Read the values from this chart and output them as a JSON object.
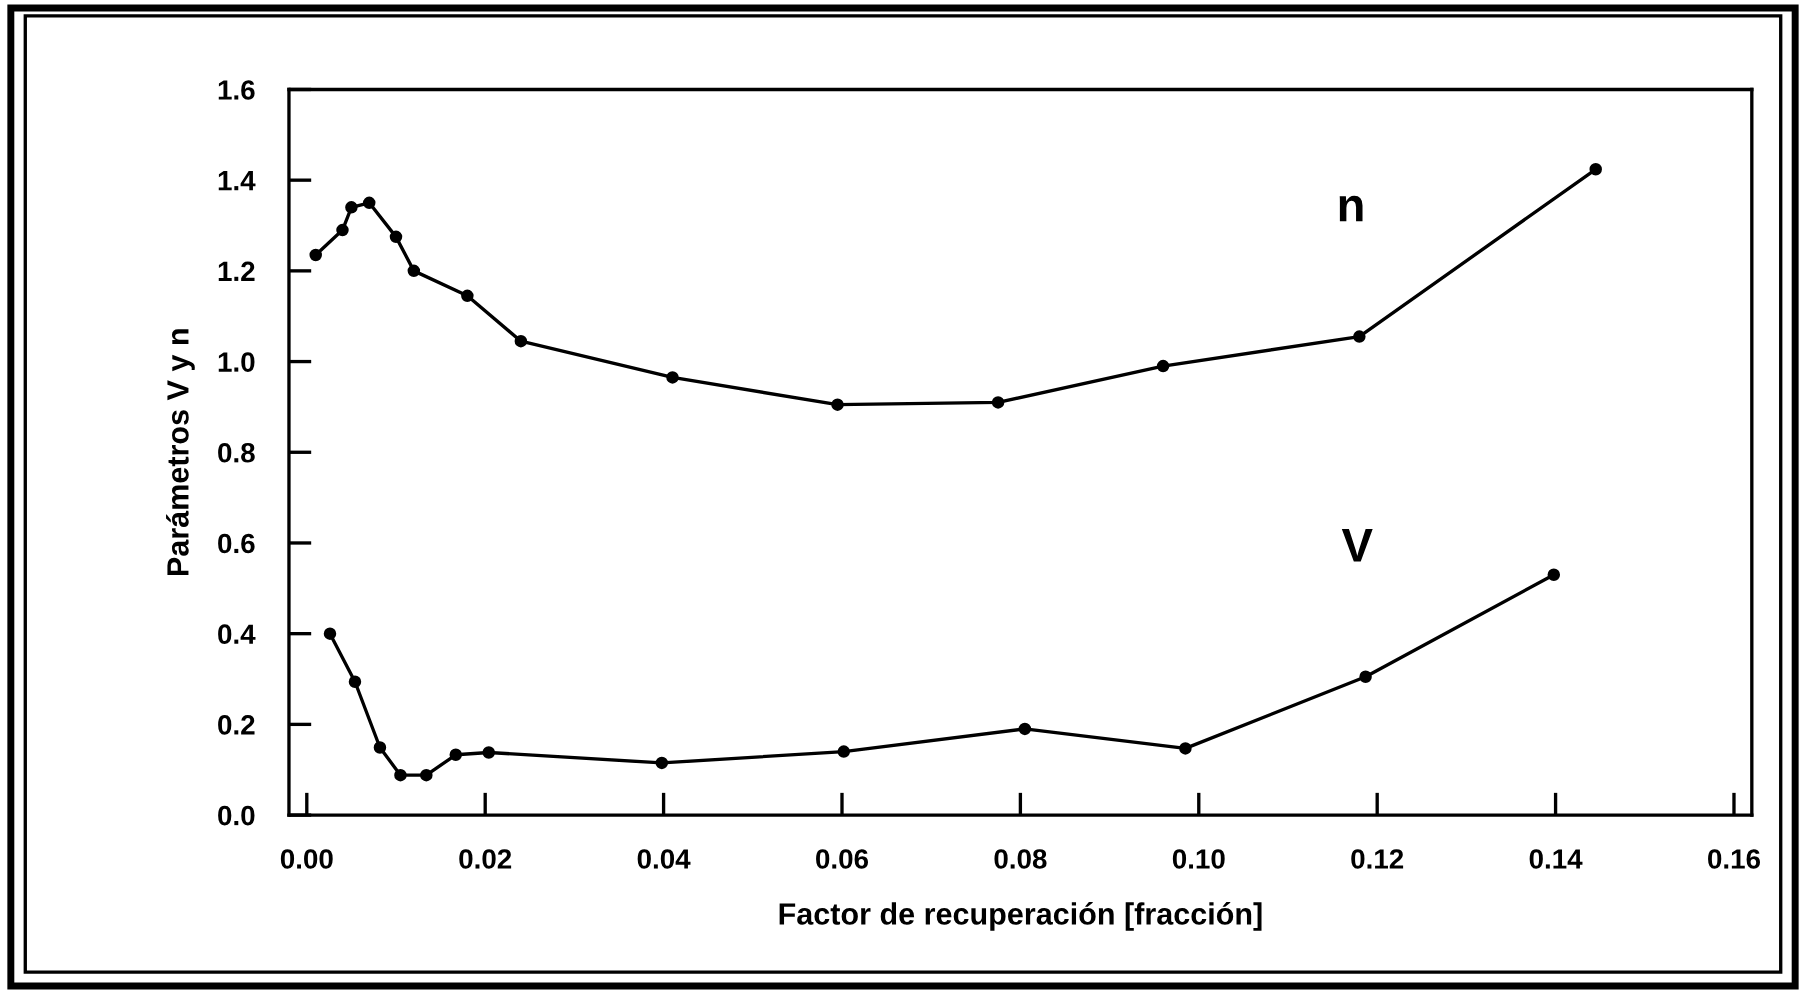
{
  "chart_data": {
    "type": "line",
    "xlabel": "Factor de recuperación [fracción]",
    "ylabel": "Parámetros V y n",
    "series": [
      {
        "name": "n",
        "x": [
          0.001,
          0.004,
          0.005,
          0.007,
          0.01,
          0.012,
          0.018,
          0.024,
          0.041,
          0.0595,
          0.0775,
          0.096,
          0.118,
          0.1445
        ],
        "values": [
          1.235,
          1.29,
          1.34,
          1.35,
          1.275,
          1.2,
          1.145,
          1.045,
          0.965,
          0.905,
          0.91,
          0.99,
          1.055,
          1.424
        ],
        "color": "#000000"
      },
      {
        "name": "V",
        "x": [
          0.0026,
          0.0054,
          0.0082,
          0.0105,
          0.0134,
          0.0167,
          0.0204,
          0.0398,
          0.0602,
          0.0805,
          0.0985,
          0.1187,
          0.1398
        ],
        "values": [
          0.4,
          0.294,
          0.149,
          0.088,
          0.088,
          0.133,
          0.138,
          0.115,
          0.14,
          0.19,
          0.147,
          0.305,
          0.53
        ],
        "color": "#000000"
      }
    ],
    "xlim": [
      -0.002,
      0.162
    ],
    "xticks": [
      {
        "value": 0.0,
        "label": "0.00"
      },
      0.02,
      0.04,
      0.06,
      0.08,
      {
        "value": 0.1,
        "label": "0.10"
      },
      0.12,
      0.14,
      0.16
    ],
    "ylim": [
      0,
      1.6
    ],
    "yticks": [
      {
        "value": 0,
        "label": "0.0"
      },
      0.2,
      0.4,
      0.6,
      0.8,
      {
        "value": 1,
        "label": "1.0"
      },
      1.2,
      1.4,
      1.6
    ],
    "marker": "circle",
    "line_style": "solid",
    "grid": false,
    "legend": false
  }
}
